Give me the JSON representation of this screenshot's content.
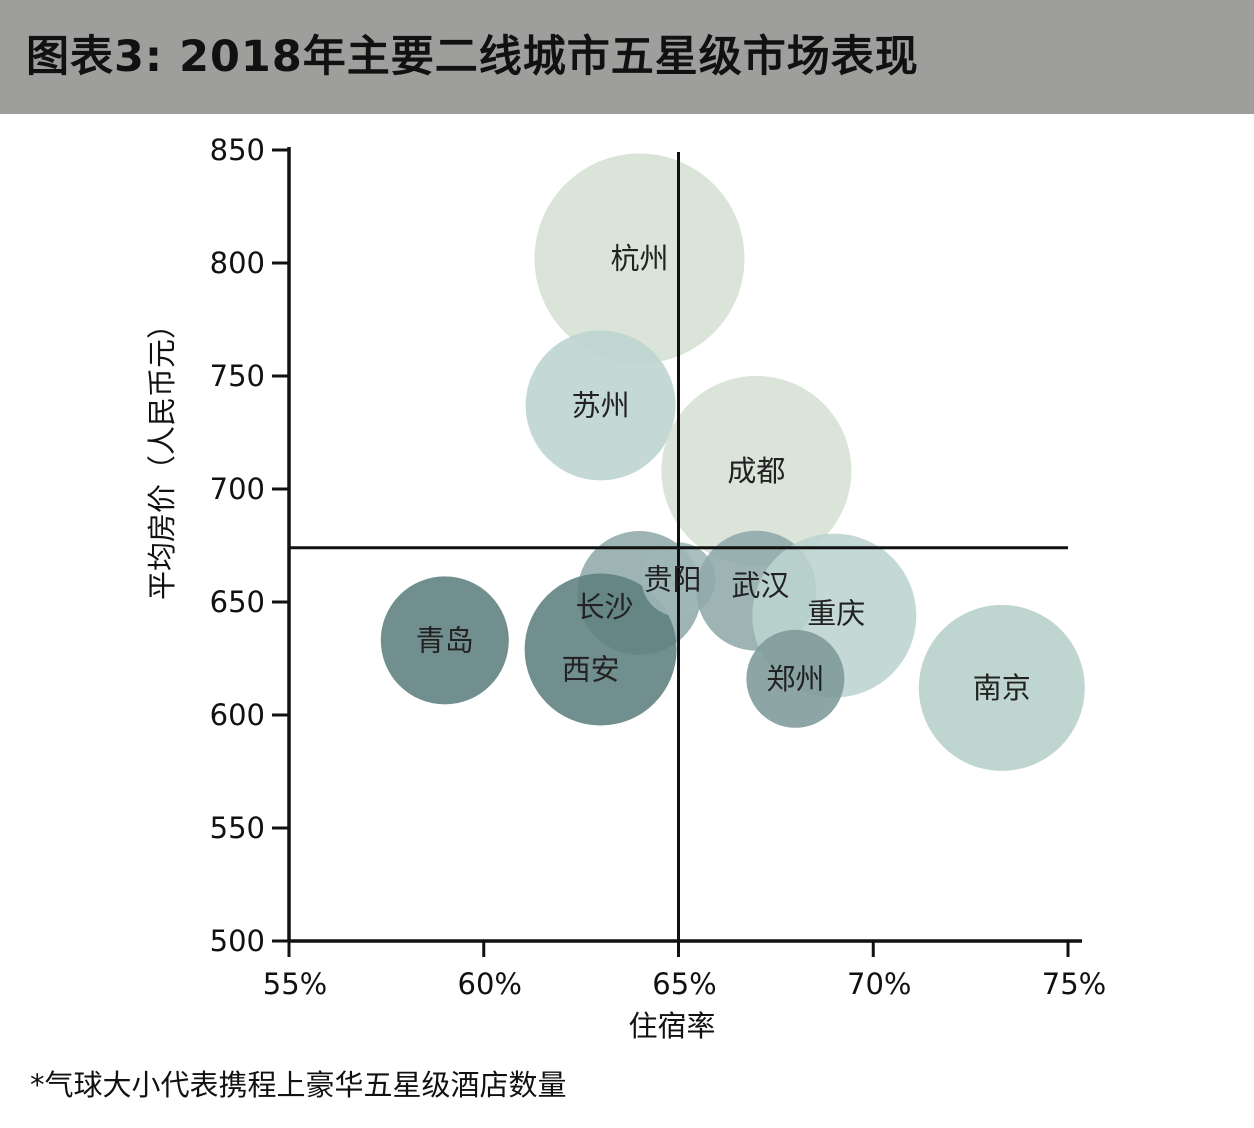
{
  "header": {
    "title": "图表3: 2018年主要二线城市五星级市场表现"
  },
  "footnote": "*气球大小代表携程上豪华五星级酒店数量",
  "chart_data": {
    "type": "scatter",
    "subtype": "bubble",
    "title": "图表3: 2018年主要二线城市五星级市场表现",
    "xlabel": "住宿率",
    "ylabel": "平均房价（人民币元）",
    "xlim": [
      55,
      75
    ],
    "ylim": [
      500,
      850
    ],
    "x_ticks": [
      55,
      60,
      65,
      70,
      75
    ],
    "x_tick_labels": [
      "55%",
      "60%",
      "65%",
      "70%",
      "75%"
    ],
    "y_ticks": [
      500,
      550,
      600,
      650,
      700,
      750,
      800,
      850
    ],
    "y_tick_labels": [
      "500",
      "550",
      "600",
      "650",
      "700",
      "750",
      "800",
      "850"
    ],
    "reference_lines": {
      "x": 65,
      "y": 674
    },
    "grid": false,
    "legend": "none",
    "colors": {
      "light": "#d5e0d3",
      "mid_light": "#bcd4cf",
      "mid": "#8fa9aa",
      "dark": "#5f7f7f"
    },
    "points": [
      {
        "name": "杭州",
        "x": 64.0,
        "y": 802,
        "size": 105,
        "color": "#d5e0d3"
      },
      {
        "name": "苏州",
        "x": 63.0,
        "y": 737,
        "size": 75,
        "color": "#bcd4cf"
      },
      {
        "name": "成都",
        "x": 67.0,
        "y": 708,
        "size": 95,
        "color": "#d5e0d3"
      },
      {
        "name": "青岛",
        "x": 59.0,
        "y": 633,
        "size": 64,
        "color": "#5f7f7f"
      },
      {
        "name": "长沙",
        "x": 64.0,
        "y": 654,
        "size": 62,
        "color": "#8fa9aa"
      },
      {
        "name": "西安",
        "x": 63.0,
        "y": 629,
        "size": 76,
        "color": "#5f7f7f"
      },
      {
        "name": "贵阳",
        "x": 65.0,
        "y": 660,
        "size": 37,
        "color": "#9fb6b6"
      },
      {
        "name": "武汉",
        "x": 67.0,
        "y": 655,
        "size": 60,
        "color": "#8fa9aa"
      },
      {
        "name": "重庆",
        "x": 69.0,
        "y": 644,
        "size": 82,
        "color": "#bcd4cf"
      },
      {
        "name": "郑州",
        "x": 68.0,
        "y": 616,
        "size": 49,
        "color": "#7d9999"
      },
      {
        "name": "南京",
        "x": 73.3,
        "y": 612,
        "size": 83,
        "color": "#b5cfca"
      }
    ]
  }
}
